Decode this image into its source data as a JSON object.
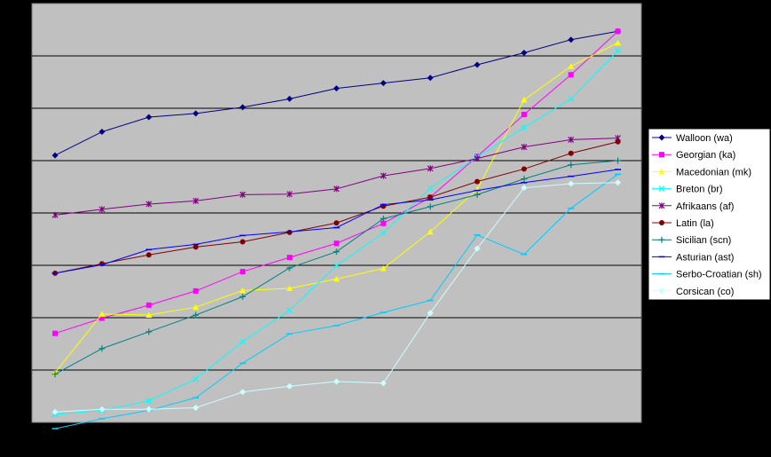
{
  "chart_data": {
    "type": "line",
    "title": "",
    "xlabel": "",
    "ylabel": "",
    "x": [
      1,
      2,
      3,
      4,
      5,
      6,
      7,
      8,
      9,
      10,
      11,
      12,
      13
    ],
    "ylim": [
      0,
      8
    ],
    "grid": true,
    "legend_position": "right",
    "plot_background": "#C0C0C0",
    "series": [
      {
        "name": "Walloon (wa)",
        "color": "#000080",
        "marker": "diamond",
        "values": [
          5.1,
          5.55,
          5.83,
          5.9,
          6.02,
          6.18,
          6.38,
          6.48,
          6.58,
          6.83,
          7.06,
          7.31,
          7.47
        ]
      },
      {
        "name": "Georgian (ka)",
        "color": "#FF00FF",
        "marker": "square",
        "values": [
          1.7,
          1.99,
          2.24,
          2.51,
          2.88,
          3.15,
          3.42,
          3.8,
          4.3,
          5.08,
          5.88,
          6.64,
          7.47
        ]
      },
      {
        "name": "Macedonian (mk)",
        "color": "#FFFF00",
        "marker": "triangle",
        "values": [
          0.95,
          2.07,
          2.05,
          2.2,
          2.52,
          2.56,
          2.74,
          2.94,
          3.64,
          4.45,
          6.16,
          6.8,
          7.25
        ]
      },
      {
        "name": "Breton (br)",
        "color": "#00FFFF",
        "marker": "x",
        "values": [
          0.15,
          0.23,
          0.41,
          0.83,
          1.54,
          2.14,
          2.99,
          3.62,
          4.47,
          5.07,
          5.63,
          6.18,
          7.1
        ]
      },
      {
        "name": "Afrikaans (af)",
        "color": "#800080",
        "marker": "star",
        "values": [
          3.96,
          4.07,
          4.17,
          4.23,
          4.35,
          4.36,
          4.46,
          4.71,
          4.85,
          5.04,
          5.26,
          5.4,
          5.43
        ]
      },
      {
        "name": "Latin (la)",
        "color": "#800000",
        "marker": "circle",
        "values": [
          2.85,
          3.03,
          3.2,
          3.35,
          3.45,
          3.63,
          3.81,
          4.13,
          4.3,
          4.6,
          4.84,
          5.14,
          5.36
        ]
      },
      {
        "name": "Sicilian (scn)",
        "color": "#008080",
        "marker": "plus",
        "values": [
          0.92,
          1.41,
          1.73,
          2.05,
          2.4,
          2.95,
          3.26,
          3.89,
          4.12,
          4.35,
          4.65,
          4.92,
          5.0
        ]
      },
      {
        "name": "Asturian (ast)",
        "color": "#0000FF",
        "marker": "dash",
        "values": [
          2.85,
          3.01,
          3.3,
          3.4,
          3.57,
          3.64,
          3.72,
          4.16,
          4.25,
          4.43,
          4.58,
          4.7,
          4.83
        ]
      },
      {
        "name": "Serbo-Croatian (sh)",
        "color": "#00CCFF",
        "marker": "dash",
        "values": [
          -0.12,
          0.07,
          0.23,
          0.47,
          1.13,
          1.69,
          1.85,
          2.1,
          2.33,
          3.58,
          3.21,
          4.09,
          4.74
        ]
      },
      {
        "name": "Corsican (co)",
        "color": "#CCFFFF",
        "marker": "diamond",
        "values": [
          0.2,
          0.25,
          0.25,
          0.28,
          0.58,
          0.69,
          0.78,
          0.75,
          2.09,
          3.32,
          4.48,
          4.56,
          4.58
        ]
      }
    ]
  }
}
